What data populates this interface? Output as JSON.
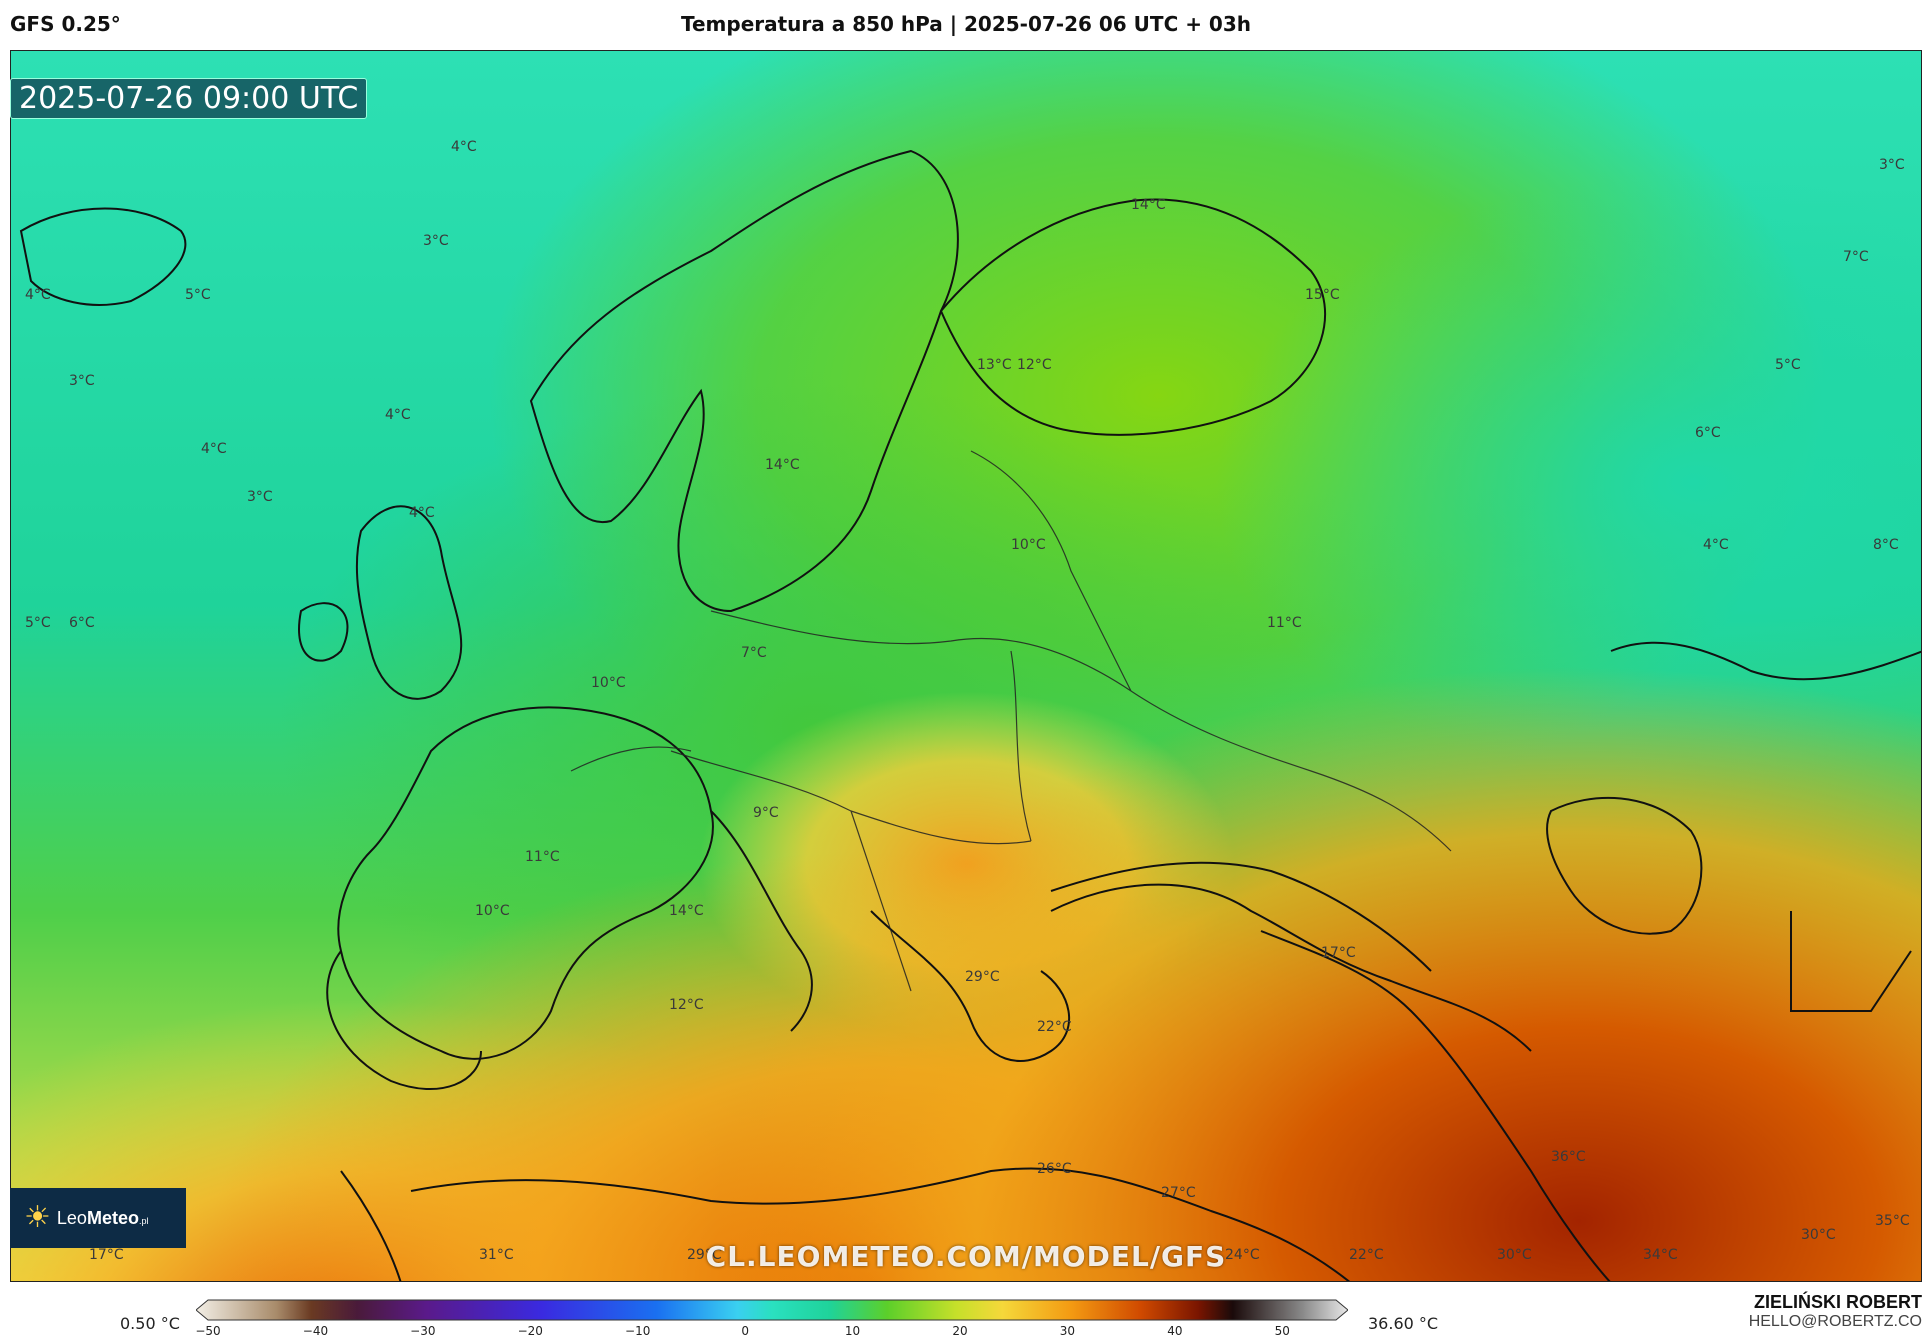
{
  "header": {
    "model": "GFS 0.25°",
    "title": "Temperatura a 850 hPa | 2025-07-26 06 UTC + 03h"
  },
  "map": {
    "valid_time": "2025-07-26 09:00 UTC",
    "watermark": "CL.LEOMETEO.COM/MODEL/GFS",
    "logo": {
      "name": "Leo",
      "name_bold": "Meteo",
      "suffix": ".pl",
      "icon": "sun-icon"
    },
    "temperature_labels": [
      "4°C",
      "3°C",
      "5°C",
      "4°C",
      "3°C",
      "4°C",
      "4°C",
      "3°C",
      "4°C",
      "5°C",
      "6°C",
      "14°C",
      "15°C",
      "13°C",
      "12°C",
      "14°C",
      "10°C",
      "11°C",
      "7°C",
      "10°C",
      "9°C",
      "11°C",
      "10°C",
      "14°C",
      "12°C",
      "29°C",
      "22°C",
      "17°C",
      "26°C",
      "27°C",
      "36°C",
      "17°C",
      "31°C",
      "29°C",
      "24°C",
      "22°C",
      "30°C",
      "34°C",
      "30°C",
      "35°C",
      "3°C",
      "7°C",
      "5°C",
      "6°C",
      "4°C",
      "8°C"
    ]
  },
  "colorbar": {
    "min_label": "0.50 °C",
    "max_label": "36.60 °C",
    "ticks": [
      "−50",
      "−40",
      "−30",
      "−20",
      "−10",
      "0",
      "10",
      "20",
      "30",
      "40",
      "50"
    ],
    "range": [
      -50,
      55
    ]
  },
  "author": {
    "name": "ZIELIŃSKI ROBERT",
    "email": "HELLO@ROBERTZ.CO"
  }
}
